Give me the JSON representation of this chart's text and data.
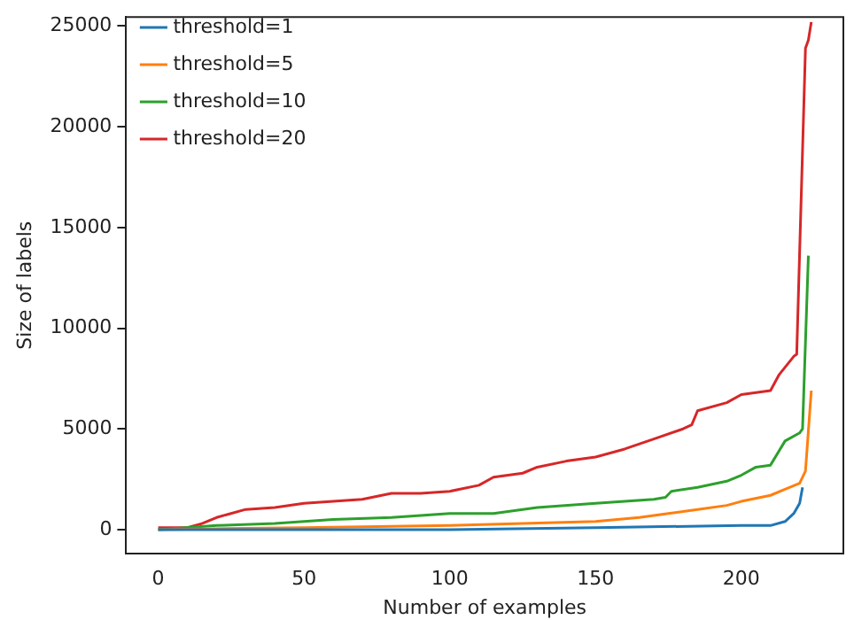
{
  "chart_data": {
    "type": "line",
    "xlabel": "Number of examples",
    "ylabel": "Size of labels",
    "xlim": [
      -11,
      235
    ],
    "xticks": [
      0,
      50,
      100,
      150,
      200
    ],
    "ylim": [
      -1200,
      25450
    ],
    "yticks": [
      0,
      5000,
      10000,
      15000,
      20000,
      25000
    ],
    "grid": false,
    "legend": "top left",
    "marker": "none",
    "line_style": "solid",
    "series": [
      {
        "name": "threshold=1",
        "color": "#1f77b4",
        "x": [
          0,
          50,
          100,
          150,
          200,
          210,
          215,
          218,
          220,
          221
        ],
        "values": [
          0,
          0,
          0,
          100,
          200,
          200,
          400,
          800,
          1300,
          2100
        ]
      },
      {
        "name": "threshold=5",
        "color": "#ff7f0e",
        "x": [
          0,
          50,
          100,
          150,
          165,
          175,
          185,
          195,
          200,
          210,
          215,
          220,
          222,
          224
        ],
        "values": [
          0,
          100,
          200,
          400,
          600,
          800,
          1000,
          1200,
          1400,
          1700,
          2000,
          2300,
          2900,
          6900
        ]
      },
      {
        "name": "threshold=10",
        "color": "#2ca02c",
        "x": [
          0,
          20,
          40,
          50,
          60,
          80,
          100,
          115,
          130,
          150,
          170,
          174,
          176,
          185,
          195,
          200,
          205,
          210,
          215,
          220,
          221,
          223
        ],
        "values": [
          0,
          200,
          300,
          400,
          500,
          600,
          800,
          800,
          1100,
          1300,
          1500,
          1600,
          1900,
          2100,
          2400,
          2700,
          3100,
          3200,
          4400,
          4800,
          5000,
          13600
        ]
      },
      {
        "name": "threshold=20",
        "color": "#d62728",
        "x": [
          0,
          10,
          15,
          20,
          30,
          40,
          50,
          60,
          70,
          80,
          90,
          100,
          110,
          115,
          125,
          130,
          140,
          150,
          160,
          170,
          180,
          183,
          185,
          195,
          200,
          210,
          213,
          218,
          219,
          222,
          223,
          224
        ],
        "values": [
          100,
          100,
          300,
          600,
          1000,
          1100,
          1300,
          1400,
          1500,
          1800,
          1800,
          1900,
          2200,
          2600,
          2800,
          3100,
          3400,
          3600,
          4000,
          4500,
          5000,
          5200,
          5900,
          6300,
          6700,
          6900,
          7700,
          8600,
          8700,
          23900,
          24300,
          25200
        ]
      }
    ]
  }
}
